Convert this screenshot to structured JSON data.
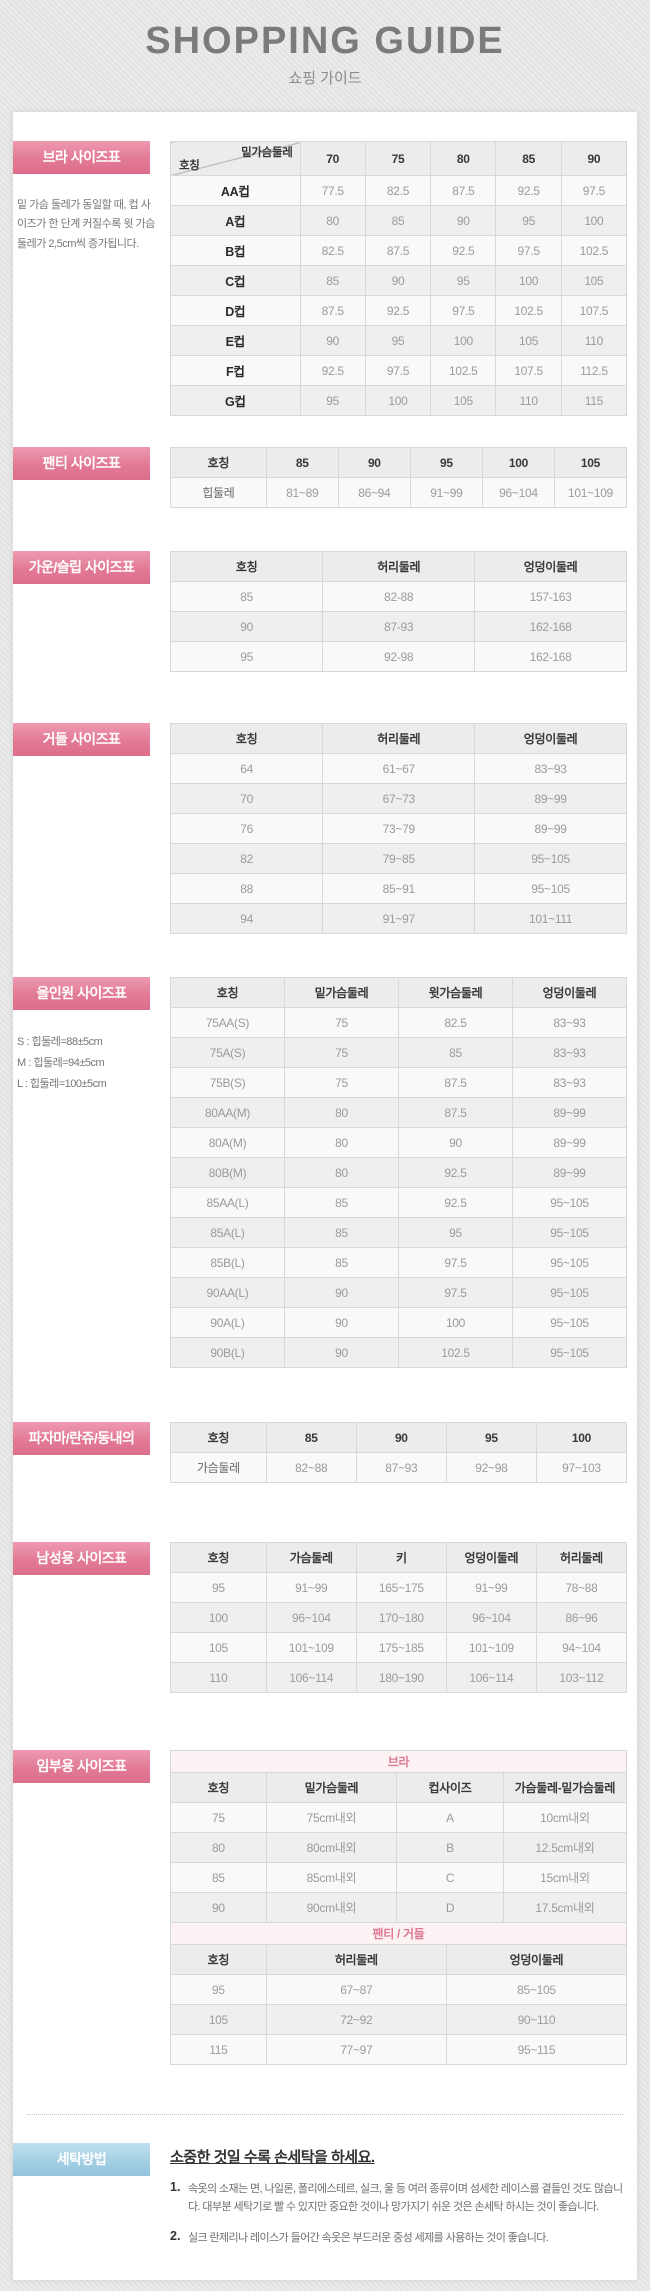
{
  "page": {
    "title": "SHOPPING GUIDE",
    "subtitle": "쇼핑 가이드"
  },
  "colors": {
    "accent_pink": "#e27a95",
    "accent_blue": "#a4d0e4",
    "subheader_pink_bg": "#fcf2f4",
    "subheader_pink_text": "#dd7b93"
  },
  "sections": {
    "bra": {
      "label": "브라 사이즈표",
      "note": "밑 가슴 둘레가 동일할 때, 컵 사이즈가 한 단계 커질수록 윗 가슴 둘레가 2,5cm씩 증가됩니다.",
      "corner": {
        "top": "밑가슴둘레",
        "bottom": "호칭"
      },
      "columns": [
        "70",
        "75",
        "80",
        "85",
        "90"
      ],
      "rows": [
        [
          "AA컵",
          "77.5",
          "82.5",
          "87.5",
          "92.5",
          "97.5"
        ],
        [
          "A컵",
          "80",
          "85",
          "90",
          "95",
          "100"
        ],
        [
          "B컵",
          "82.5",
          "87.5",
          "92.5",
          "97.5",
          "102.5"
        ],
        [
          "C컵",
          "85",
          "90",
          "95",
          "100",
          "105"
        ],
        [
          "D컵",
          "87.5",
          "92.5",
          "97.5",
          "102.5",
          "107.5"
        ],
        [
          "E컵",
          "90",
          "95",
          "100",
          "105",
          "110"
        ],
        [
          "F컵",
          "92.5",
          "97.5",
          "102.5",
          "107.5",
          "112.5"
        ],
        [
          "G컵",
          "95",
          "100",
          "105",
          "110",
          "115"
        ]
      ]
    },
    "panty": {
      "label": "팬티 사이즈표",
      "header": [
        "호칭",
        "85",
        "90",
        "95",
        "100",
        "105"
      ],
      "rows": [
        [
          "힙둘레",
          "81~89",
          "86~94",
          "91~99",
          "96~104",
          "101~109"
        ]
      ]
    },
    "gown": {
      "label": "가운/슬립 사이즈표",
      "header": [
        "호칭",
        "허리둘레",
        "엉덩이둘레"
      ],
      "rows": [
        [
          "85",
          "82-88",
          "157-163"
        ],
        [
          "90",
          "87-93",
          "162-168"
        ],
        [
          "95",
          "92-98",
          "162-168"
        ]
      ]
    },
    "girdle": {
      "label": "거들 사이즈표",
      "header": [
        "호칭",
        "허리둘레",
        "엉덩이둘레"
      ],
      "rows": [
        [
          "64",
          "61~67",
          "83~93"
        ],
        [
          "70",
          "67~73",
          "89~99"
        ],
        [
          "76",
          "73~79",
          "89~99"
        ],
        [
          "82",
          "79~85",
          "95~105"
        ],
        [
          "88",
          "85~91",
          "95~105"
        ],
        [
          "94",
          "91~97",
          "101~111"
        ]
      ]
    },
    "allinone": {
      "label": "올인원 사이즈표",
      "notes": [
        "S : 힙둘레=88±5cm",
        "M : 힙둘레=94±5cm",
        "L : 힙둘레=100±5cm"
      ],
      "header": [
        "호칭",
        "밑가슴둘레",
        "윗가슴둘레",
        "엉덩이둘레"
      ],
      "rows": [
        [
          "75AA(S)",
          "75",
          "82.5",
          "83~93"
        ],
        [
          "75A(S)",
          "75",
          "85",
          "83~93"
        ],
        [
          "75B(S)",
          "75",
          "87.5",
          "83~93"
        ],
        [
          "80AA(M)",
          "80",
          "87.5",
          "89~99"
        ],
        [
          "80A(M)",
          "80",
          "90",
          "89~99"
        ],
        [
          "80B(M)",
          "80",
          "92.5",
          "89~99"
        ],
        [
          "85AA(L)",
          "85",
          "92.5",
          "95~105"
        ],
        [
          "85A(L)",
          "85",
          "95",
          "95~105"
        ],
        [
          "85B(L)",
          "85",
          "97.5",
          "95~105"
        ],
        [
          "90AA(L)",
          "90",
          "97.5",
          "95~105"
        ],
        [
          "90A(L)",
          "90",
          "100",
          "95~105"
        ],
        [
          "90B(L)",
          "90",
          "102.5",
          "95~105"
        ]
      ]
    },
    "pajama": {
      "label": "파자마/란쥬/동내의",
      "header": [
        "호칭",
        "85",
        "90",
        "95",
        "100"
      ],
      "rows": [
        [
          "가슴둘레",
          "82~88",
          "87~93",
          "92~98",
          "97~103"
        ]
      ]
    },
    "mens": {
      "label": "남성용 사이즈표",
      "header": [
        "호칭",
        "가슴둘레",
        "키",
        "엉덩이둘레",
        "허리둘레"
      ],
      "rows": [
        [
          "95",
          "91~99",
          "165~175",
          "91~99",
          "78~88"
        ],
        [
          "100",
          "96~104",
          "170~180",
          "96~104",
          "86~96"
        ],
        [
          "105",
          "101~109",
          "175~185",
          "101~109",
          "94~104"
        ],
        [
          "110",
          "106~114",
          "180~190",
          "106~114",
          "103~112"
        ]
      ]
    },
    "maternity": {
      "label": "임부용 사이즈표",
      "sub_tables": [
        {
          "title": "브라",
          "header": [
            "호칭",
            "밑가슴둘레",
            "컵사이즈",
            "가슴둘레-밑가슴둘레"
          ],
          "rows": [
            [
              "75",
              "75cm내외",
              "A",
              "10cm내외"
            ],
            [
              "80",
              "80cm내외",
              "B",
              "12.5cm내외"
            ],
            [
              "85",
              "85cm내외",
              "C",
              "15cm내외"
            ],
            [
              "90",
              "90cm내외",
              "D",
              "17.5cm내외"
            ]
          ]
        },
        {
          "title": "팬티 / 거들",
          "header": [
            "호칭",
            "허리둘레",
            "엉덩이둘레"
          ],
          "rows": [
            [
              "95",
              "67~87",
              "85~105"
            ],
            [
              "105",
              "72~92",
              "90~110"
            ],
            [
              "115",
              "77~97",
              "95~115"
            ]
          ]
        }
      ]
    },
    "washing": {
      "label": "세탁방법",
      "title": "소중한 것일 수록 손세탁을 하세요.",
      "items": [
        {
          "num": "1.",
          "text": "속옷의 소재는 면, 나일론, 폴리에스테르, 실크, 울 등 여러 종류이며 섬세한 레이스를 곁들인 것도 많습니다. 대부분 세탁기로 빨 수 있지만 중요한 것이나 망가지기 쉬운 것은 손세탁 하시는 것이 좋습니다."
        },
        {
          "num": "2.",
          "text": "실크 란제리나 레이스가 들어간 속옷은 부드러운 중성 세제를 사용하는 것이 좋습니다."
        }
      ]
    }
  }
}
